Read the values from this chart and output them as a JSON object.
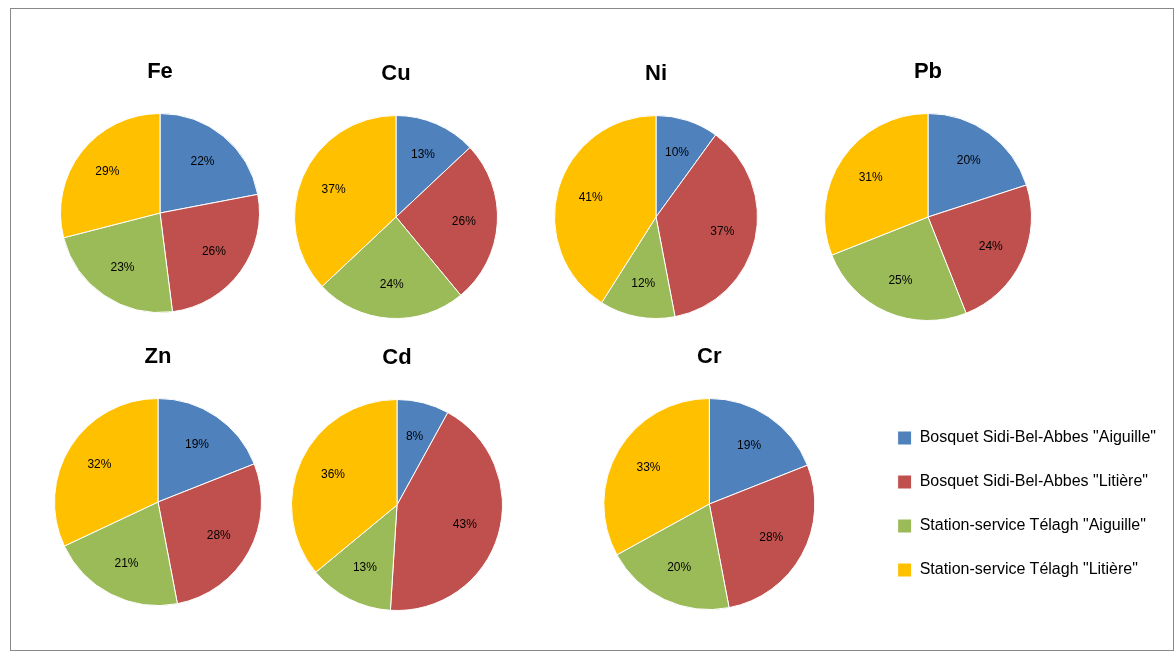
{
  "chart_data": [
    {
      "type": "pie",
      "title": "Fe",
      "categories": [
        null,
        null,
        null,
        null
      ],
      "values": [
        22,
        26,
        23,
        29
      ],
      "value_labels": [
        "22%",
        "26%",
        "23%",
        "29%"
      ],
      "colors": [
        "#4f81bd",
        "#c0504d",
        "#9bbb59",
        "#ffc000"
      ],
      "legend": false
    },
    {
      "type": "pie",
      "title": "Cu",
      "categories": [
        null,
        null,
        null,
        null
      ],
      "values": [
        13,
        26,
        24,
        37
      ],
      "value_labels": [
        "13%",
        "26%",
        "24%",
        "37%"
      ],
      "colors": [
        "#4f81bd",
        "#c0504d",
        "#9bbb59",
        "#ffc000"
      ],
      "legend": false
    },
    {
      "type": "pie",
      "title": "Ni",
      "categories": [
        null,
        null,
        null,
        null
      ],
      "values": [
        10,
        37,
        12,
        41
      ],
      "value_labels": [
        "10%",
        "37%",
        "12%",
        "41%"
      ],
      "colors": [
        "#4f81bd",
        "#c0504d",
        "#9bbb59",
        "#ffc000"
      ],
      "legend": false
    },
    {
      "type": "pie",
      "title": "Pb",
      "categories": [
        null,
        null,
        null,
        null
      ],
      "values": [
        20,
        24,
        25,
        31
      ],
      "value_labels": [
        "20%",
        "24%",
        "25%",
        "31%"
      ],
      "colors": [
        "#4f81bd",
        "#c0504d",
        "#9bbb59",
        "#ffc000"
      ],
      "legend": false
    },
    {
      "type": "pie",
      "title": "Zn",
      "categories": [
        null,
        null,
        null,
        null
      ],
      "values": [
        19,
        28,
        21,
        32
      ],
      "value_labels": [
        "19%",
        "28%",
        "21%",
        "32%"
      ],
      "colors": [
        "#4f81bd",
        "#c0504d",
        "#9bbb59",
        "#ffc000"
      ],
      "legend": false
    },
    {
      "type": "pie",
      "title": "Cd",
      "categories": [
        null,
        null,
        null,
        null
      ],
      "values": [
        8,
        43,
        13,
        36
      ],
      "value_labels": [
        "8%",
        "43%",
        "13%",
        "36%"
      ],
      "colors": [
        "#4f81bd",
        "#c0504d",
        "#9bbb59",
        "#ffc000"
      ],
      "legend": false
    },
    {
      "type": "pie",
      "title": "Cr",
      "categories": [
        "Bosquet Sidi-Bel-Abbes \"Aiguille\"",
        "Bosquet Sidi-Bel-Abbes \"Litière\"",
        "Station-service Télagh \"Aiguille\"",
        "Station-service Télagh \"Litière\""
      ],
      "values": [
        19,
        28,
        20,
        33
      ],
      "value_labels": [
        "19%",
        "28%",
        "20%",
        "33%"
      ],
      "colors": [
        "#4f81bd",
        "#c0504d",
        "#9bbb59",
        "#ffc000"
      ],
      "legend": "right"
    }
  ]
}
